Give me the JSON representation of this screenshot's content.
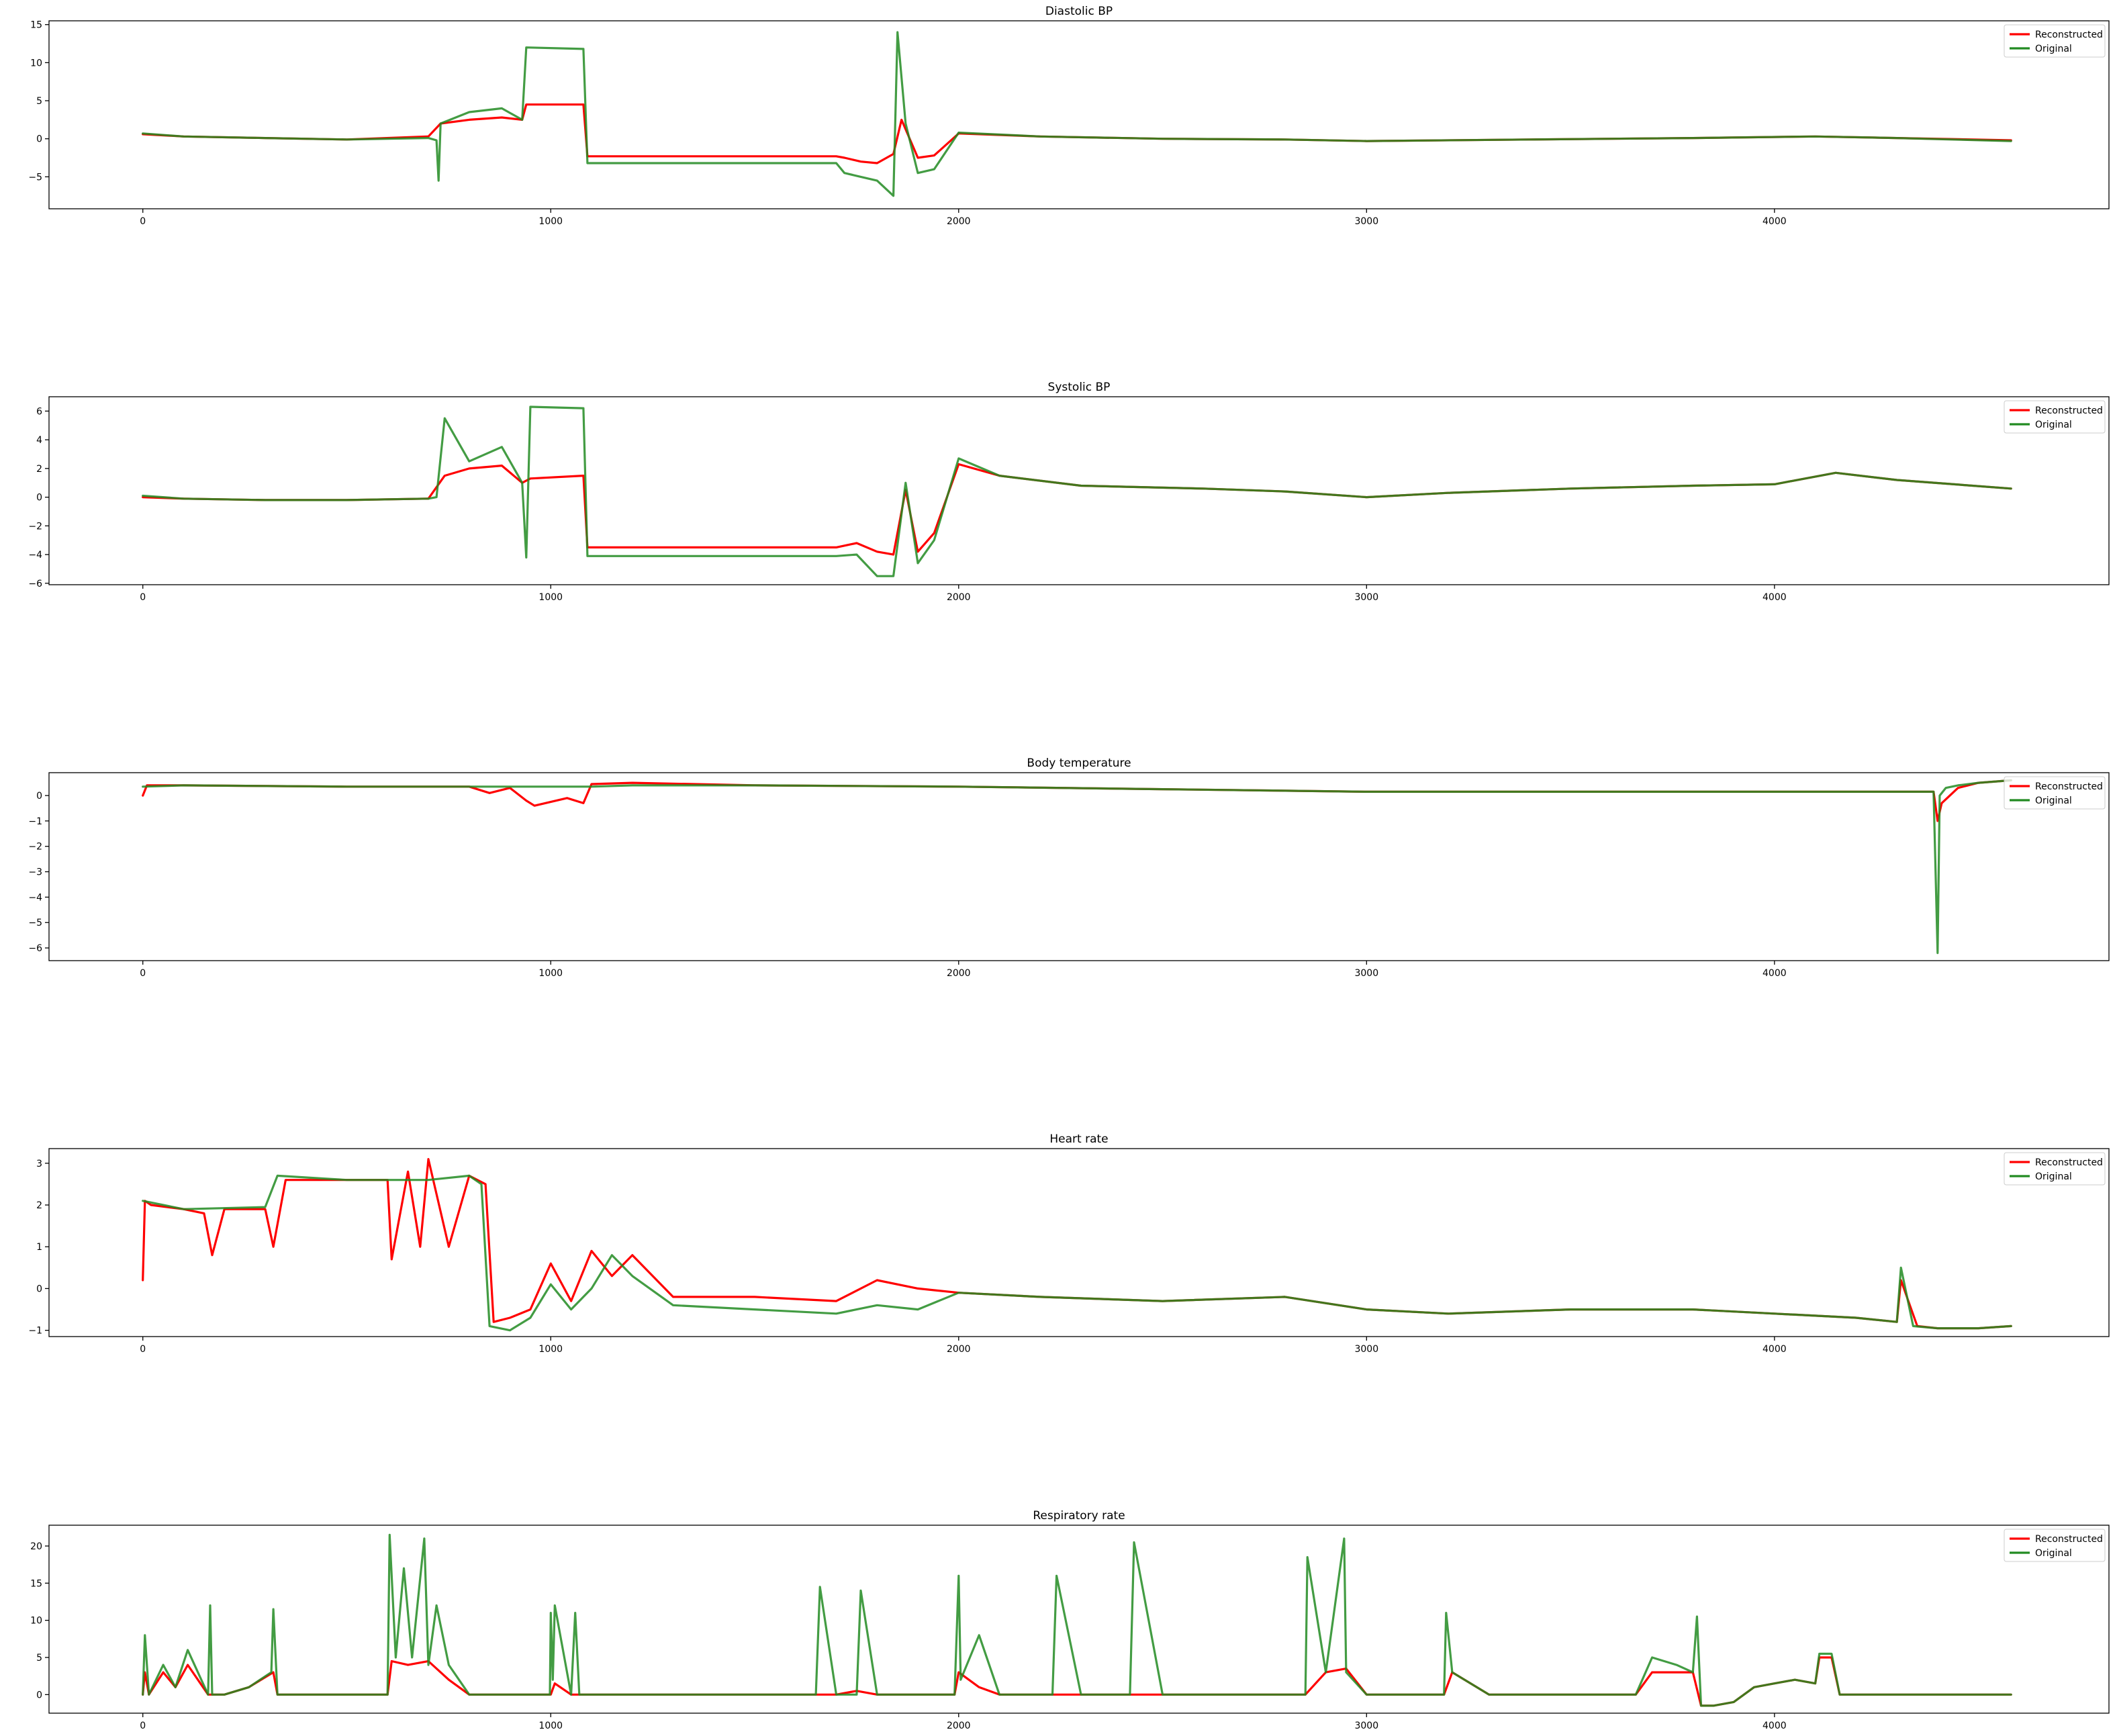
{
  "figure": {
    "background": "#ffffff",
    "line_colors": {
      "Reconstructed": "#ff0000",
      "Original": "#228b22",
      "overlap": "#4a5a00"
    }
  },
  "chart_data": [
    {
      "type": "line",
      "title": "Diastolic BP",
      "xlabel": "",
      "ylabel": "",
      "xlim": [
        -230,
        4820
      ],
      "ylim": [
        -9.2,
        15.5
      ],
      "xticks": [
        0,
        1000,
        2000,
        3000,
        4000
      ],
      "yticks": [
        -5,
        0,
        5,
        10,
        15
      ],
      "grid": false,
      "legend": {
        "position": "top-right",
        "entries": [
          "Reconstructed",
          "Original"
        ]
      },
      "series": [
        {
          "name": "Reconstructed",
          "color": "#ff0000",
          "x": [
            0,
            100,
            300,
            500,
            700,
            730,
            800,
            880,
            930,
            940,
            1080,
            1090,
            1300,
            1500,
            1700,
            1720,
            1760,
            1800,
            1840,
            1860,
            1900,
            1940,
            2000,
            2200,
            2500,
            2800,
            3000,
            3400,
            3800,
            4100,
            4300,
            4580
          ],
          "values": [
            0.6,
            0.3,
            0.1,
            -0.1,
            0.3,
            2.0,
            2.5,
            2.8,
            2.5,
            4.5,
            4.5,
            -2.3,
            -2.3,
            -2.3,
            -2.3,
            -2.5,
            -3.0,
            -3.2,
            -2.0,
            2.5,
            -2.5,
            -2.2,
            0.7,
            0.3,
            0.0,
            -0.1,
            -0.3,
            -0.1,
            0.1,
            0.3,
            0.1,
            -0.2
          ]
        },
        {
          "name": "Original",
          "color": "#228b22",
          "x": [
            0,
            100,
            300,
            500,
            700,
            720,
            725,
            730,
            800,
            880,
            930,
            940,
            1080,
            1090,
            1300,
            1500,
            1700,
            1720,
            1760,
            1800,
            1840,
            1850,
            1870,
            1900,
            1940,
            2000,
            2200,
            2500,
            2800,
            3000,
            3400,
            3800,
            4100,
            4300,
            4580
          ],
          "values": [
            0.7,
            0.3,
            0.1,
            -0.1,
            0.1,
            -0.2,
            -5.5,
            2.0,
            3.5,
            4.0,
            2.5,
            12.0,
            11.8,
            -3.2,
            -3.2,
            -3.2,
            -3.2,
            -4.5,
            -5.0,
            -5.5,
            -7.5,
            14.0,
            2.0,
            -4.5,
            -4.0,
            0.8,
            0.3,
            0.0,
            -0.1,
            -0.3,
            -0.1,
            0.1,
            0.3,
            0.1,
            -0.3
          ]
        }
      ]
    },
    {
      "type": "line",
      "title": "Systolic BP",
      "xlabel": "",
      "ylabel": "",
      "xlim": [
        -230,
        4820
      ],
      "ylim": [
        -6.1,
        7.0
      ],
      "xticks": [
        0,
        1000,
        2000,
        3000,
        4000
      ],
      "yticks": [
        -6,
        -4,
        -2,
        0,
        2,
        4,
        6
      ],
      "grid": false,
      "legend": {
        "position": "top-right",
        "entries": [
          "Reconstructed",
          "Original"
        ]
      },
      "series": [
        {
          "name": "Reconstructed",
          "color": "#ff0000",
          "x": [
            0,
            100,
            300,
            500,
            700,
            740,
            800,
            880,
            930,
            950,
            1080,
            1090,
            1300,
            1500,
            1700,
            1750,
            1800,
            1840,
            1870,
            1900,
            1940,
            2000,
            2100,
            2300,
            2600,
            2800,
            3000,
            3200,
            3500,
            3800,
            4000,
            4150,
            4300,
            4580
          ],
          "values": [
            0.0,
            -0.1,
            -0.2,
            -0.2,
            -0.1,
            1.5,
            2.0,
            2.2,
            1.0,
            1.3,
            1.5,
            -3.5,
            -3.5,
            -3.5,
            -3.5,
            -3.2,
            -3.8,
            -4.0,
            0.5,
            -3.8,
            -2.5,
            2.3,
            1.5,
            0.8,
            0.6,
            0.4,
            0.0,
            0.3,
            0.6,
            0.8,
            0.9,
            1.7,
            1.2,
            0.6
          ]
        },
        {
          "name": "Original",
          "color": "#228b22",
          "x": [
            0,
            100,
            300,
            500,
            700,
            720,
            740,
            800,
            880,
            930,
            940,
            950,
            1080,
            1090,
            1300,
            1500,
            1700,
            1750,
            1800,
            1840,
            1870,
            1900,
            1940,
            2000,
            2100,
            2300,
            2600,
            2800,
            3000,
            3200,
            3500,
            3800,
            4000,
            4150,
            4300,
            4580
          ],
          "values": [
            0.1,
            -0.1,
            -0.2,
            -0.2,
            -0.1,
            0.0,
            5.5,
            2.5,
            3.5,
            1.0,
            -4.2,
            6.3,
            6.2,
            -4.1,
            -4.1,
            -4.1,
            -4.1,
            -4.0,
            -5.5,
            -5.5,
            1.0,
            -4.6,
            -3.0,
            2.7,
            1.5,
            0.8,
            0.6,
            0.4,
            0.0,
            0.3,
            0.6,
            0.8,
            0.9,
            1.7,
            1.2,
            0.6
          ]
        }
      ]
    },
    {
      "type": "line",
      "title": "Body temperature",
      "xlabel": "",
      "ylabel": "",
      "xlim": [
        -230,
        4820
      ],
      "ylim": [
        -6.5,
        0.9
      ],
      "xticks": [
        0,
        1000,
        2000,
        3000,
        4000
      ],
      "yticks": [
        -6,
        -5,
        -4,
        -3,
        -2,
        -1,
        0
      ],
      "grid": false,
      "legend": {
        "position": "top-right",
        "entries": [
          "Reconstructed",
          "Original"
        ]
      },
      "series": [
        {
          "name": "Reconstructed",
          "color": "#ff0000",
          "x": [
            0,
            10,
            100,
            500,
            800,
            850,
            900,
            940,
            960,
            1040,
            1080,
            1100,
            1200,
            1500,
            2000,
            2500,
            3000,
            3500,
            4000,
            4390,
            4400,
            4410,
            4450,
            4500,
            4580
          ],
          "values": [
            0.0,
            0.4,
            0.4,
            0.35,
            0.35,
            0.1,
            0.3,
            -0.2,
            -0.4,
            -0.1,
            -0.3,
            0.45,
            0.5,
            0.4,
            0.35,
            0.25,
            0.15,
            0.15,
            0.15,
            0.15,
            -1.0,
            -0.3,
            0.3,
            0.5,
            0.6
          ]
        },
        {
          "name": "Original",
          "color": "#228b22",
          "x": [
            0,
            100,
            500,
            800,
            1100,
            1200,
            1500,
            2000,
            2500,
            3000,
            3500,
            4000,
            4390,
            4400,
            4405,
            4420,
            4450,
            4500,
            4580
          ],
          "values": [
            0.35,
            0.4,
            0.35,
            0.35,
            0.35,
            0.4,
            0.4,
            0.35,
            0.25,
            0.15,
            0.15,
            0.15,
            0.15,
            -6.2,
            0.0,
            0.3,
            0.4,
            0.5,
            0.6
          ]
        }
      ]
    },
    {
      "type": "line",
      "title": "Heart rate",
      "xlabel": "",
      "ylabel": "",
      "xlim": [
        -230,
        4820
      ],
      "ylim": [
        -1.15,
        3.35
      ],
      "xticks": [
        0,
        1000,
        2000,
        3000,
        4000
      ],
      "yticks": [
        -1,
        0,
        1,
        2,
        3
      ],
      "grid": false,
      "legend": {
        "position": "top-right",
        "entries": [
          "Reconstructed",
          "Original"
        ]
      },
      "series": [
        {
          "name": "Reconstructed",
          "color": "#ff0000",
          "x": [
            0,
            5,
            20,
            100,
            150,
            170,
            200,
            300,
            320,
            350,
            500,
            600,
            610,
            650,
            680,
            700,
            750,
            800,
            840,
            860,
            900,
            950,
            1000,
            1050,
            1100,
            1150,
            1200,
            1300,
            1500,
            1700,
            1800,
            1900,
            2000,
            2200,
            2500,
            2800,
            3000,
            3200,
            3500,
            3800,
            4000,
            4200,
            4300,
            4310,
            4350,
            4400,
            4500,
            4580
          ],
          "values": [
            0.2,
            2.1,
            2.0,
            1.9,
            1.8,
            0.8,
            1.9,
            1.9,
            1.0,
            2.6,
            2.6,
            2.6,
            0.7,
            2.8,
            1.0,
            3.1,
            1.0,
            2.7,
            2.5,
            -0.8,
            -0.7,
            -0.5,
            0.6,
            -0.3,
            0.9,
            0.3,
            0.8,
            -0.2,
            -0.2,
            -0.3,
            0.2,
            0.0,
            -0.1,
            -0.2,
            -0.3,
            -0.2,
            -0.5,
            -0.6,
            -0.5,
            -0.5,
            -0.6,
            -0.7,
            -0.8,
            0.2,
            -0.9,
            -0.95,
            -0.95,
            -0.9
          ]
        },
        {
          "name": "Original",
          "color": "#228b22",
          "x": [
            0,
            100,
            300,
            330,
            500,
            700,
            800,
            830,
            850,
            900,
            950,
            1000,
            1050,
            1100,
            1150,
            1200,
            1300,
            1500,
            1700,
            1800,
            1900,
            2000,
            2200,
            2500,
            2800,
            3000,
            3200,
            3500,
            3800,
            4000,
            4200,
            4300,
            4310,
            4340,
            4400,
            4500,
            4580
          ],
          "values": [
            2.1,
            1.9,
            1.95,
            2.7,
            2.6,
            2.6,
            2.7,
            2.5,
            -0.9,
            -1.0,
            -0.7,
            0.1,
            -0.5,
            0.0,
            0.8,
            0.3,
            -0.4,
            -0.5,
            -0.6,
            -0.4,
            -0.5,
            -0.1,
            -0.2,
            -0.3,
            -0.2,
            -0.5,
            -0.6,
            -0.5,
            -0.5,
            -0.6,
            -0.7,
            -0.8,
            0.5,
            -0.9,
            -0.95,
            -0.95,
            -0.9
          ]
        }
      ]
    },
    {
      "type": "line",
      "title": "Respiratory rate",
      "xlabel": "",
      "ylabel": "",
      "xlim": [
        -230,
        4820
      ],
      "ylim": [
        -2.5,
        22.8
      ],
      "xticks": [
        0,
        1000,
        2000,
        3000,
        4000
      ],
      "yticks": [
        0,
        5,
        10,
        15,
        20
      ],
      "grid": false,
      "legend": {
        "position": "top-right",
        "entries": [
          "Reconstructed",
          "Original"
        ]
      },
      "series": [
        {
          "name": "Reconstructed",
          "color": "#ff0000",
          "x": [
            0,
            5,
            15,
            50,
            80,
            110,
            160,
            200,
            260,
            320,
            330,
            400,
            600,
            610,
            650,
            700,
            750,
            800,
            900,
            1000,
            1010,
            1050,
            1200,
            1500,
            1700,
            1750,
            1800,
            1990,
            2000,
            2050,
            2100,
            2500,
            2850,
            2900,
            2950,
            3000,
            3190,
            3210,
            3300,
            3660,
            3700,
            3760,
            3800,
            3820,
            3850,
            3900,
            3950,
            4000,
            4050,
            4100,
            4110,
            4140,
            4160,
            4580
          ],
          "values": [
            0,
            3,
            0,
            3,
            1,
            4,
            0,
            0,
            1,
            3,
            0,
            0,
            0,
            4.5,
            4,
            4.5,
            2,
            0,
            0,
            0,
            1.5,
            0,
            0,
            0,
            0,
            0.5,
            0,
            0,
            3,
            1,
            0,
            0,
            0,
            3,
            3.5,
            0,
            0,
            3,
            0,
            0,
            3,
            3,
            3,
            -1.5,
            -1.5,
            -1,
            1,
            1.5,
            2,
            1.5,
            5,
            5,
            0,
            0
          ]
        },
        {
          "name": "Original",
          "color": "#228b22",
          "x": [
            0,
            5,
            15,
            50,
            80,
            110,
            160,
            165,
            170,
            200,
            260,
            315,
            320,
            330,
            400,
            600,
            605,
            620,
            640,
            660,
            690,
            700,
            720,
            750,
            800,
            900,
            998,
            1000,
            1005,
            1010,
            1050,
            1060,
            1070,
            1200,
            1500,
            1650,
            1660,
            1700,
            1750,
            1760,
            1800,
            1990,
            2000,
            2005,
            2050,
            2100,
            2200,
            2230,
            2240,
            2300,
            2400,
            2420,
            2430,
            2500,
            2850,
            2855,
            2900,
            2945,
            2950,
            3000,
            3190,
            3195,
            3210,
            3300,
            3660,
            3700,
            3760,
            3800,
            3810,
            3820,
            3850,
            3900,
            3950,
            4000,
            4050,
            4100,
            4110,
            4140,
            4160,
            4580
          ],
          "values": [
            0,
            8,
            0,
            4,
            1,
            6,
            0,
            12,
            0,
            0,
            1,
            3,
            11.5,
            0,
            0,
            0,
            21.5,
            5,
            17,
            5,
            21,
            4,
            12,
            4,
            0,
            0,
            0,
            11,
            2,
            12,
            0,
            11,
            0,
            0,
            0,
            0,
            14.5,
            0,
            0,
            14,
            0,
            0,
            16,
            2,
            8,
            0,
            0,
            0,
            16,
            0,
            0,
            0,
            20.5,
            0,
            0,
            18.5,
            3,
            21,
            3,
            0,
            0,
            11,
            3,
            0,
            0,
            5,
            4,
            3,
            10.5,
            -1.5,
            -1.5,
            -1,
            1,
            1.5,
            2,
            1.5,
            5.5,
            5.5,
            0,
            0
          ]
        }
      ]
    }
  ]
}
